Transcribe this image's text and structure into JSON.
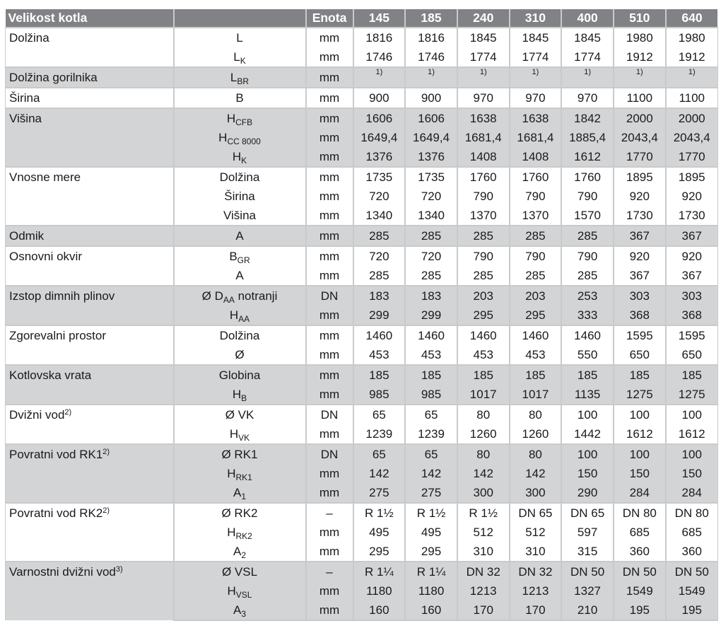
{
  "header": {
    "label": "Velikost kotla",
    "unit": "Enota",
    "sizes": [
      "145",
      "185",
      "240",
      "310",
      "400",
      "510",
      "640"
    ]
  },
  "groups": [
    {
      "label": "Dolžina",
      "rows": [
        {
          "sym": "L",
          "sub": "",
          "unit": "mm",
          "values": [
            "1816",
            "1816",
            "1845",
            "1845",
            "1845",
            "1980",
            "1980"
          ]
        },
        {
          "sym": "L",
          "sub": "K",
          "unit": "mm",
          "values": [
            "1746",
            "1746",
            "1774",
            "1774",
            "1774",
            "1912",
            "1912"
          ]
        }
      ]
    },
    {
      "label": "Dolžina gorilnika",
      "rows": [
        {
          "sym": "L",
          "sub": "BR",
          "unit": "mm",
          "values": [
            "1)",
            "1)",
            "1)",
            "1)",
            "1)",
            "1)",
            "1)"
          ],
          "footnote": true
        }
      ]
    },
    {
      "label": "Širina",
      "rows": [
        {
          "sym": "B",
          "sub": "",
          "unit": "mm",
          "values": [
            "900",
            "900",
            "970",
            "970",
            "970",
            "1100",
            "1100"
          ]
        }
      ]
    },
    {
      "label": "Višina",
      "rows": [
        {
          "sym": "H",
          "sub": "CFB",
          "unit": "mm",
          "values": [
            "1606",
            "1606",
            "1638",
            "1638",
            "1842",
            "2000",
            "2000"
          ]
        },
        {
          "sym": "H",
          "sub": "CC 8000",
          "unit": "mm",
          "values": [
            "1649,4",
            "1649,4",
            "1681,4",
            "1681,4",
            "1885,4",
            "2043,4",
            "2043,4"
          ]
        },
        {
          "sym": "H",
          "sub": "K",
          "unit": "mm",
          "values": [
            "1376",
            "1376",
            "1408",
            "1408",
            "1612",
            "1770",
            "1770"
          ]
        }
      ]
    },
    {
      "label": "Vnosne mere",
      "rows": [
        {
          "sym": "Dolžina",
          "sub": "",
          "unit": "mm",
          "values": [
            "1735",
            "1735",
            "1760",
            "1760",
            "1760",
            "1895",
            "1895"
          ]
        },
        {
          "sym": "Širina",
          "sub": "",
          "unit": "mm",
          "values": [
            "720",
            "720",
            "790",
            "790",
            "790",
            "920",
            "920"
          ]
        },
        {
          "sym": "Višina",
          "sub": "",
          "unit": "mm",
          "values": [
            "1340",
            "1340",
            "1370",
            "1370",
            "1570",
            "1730",
            "1730"
          ]
        }
      ]
    },
    {
      "label": "Odmik",
      "rows": [
        {
          "sym": "A",
          "sub": "",
          "unit": "mm",
          "values": [
            "285",
            "285",
            "285",
            "285",
            "285",
            "367",
            "367"
          ]
        }
      ]
    },
    {
      "label": "Osnovni okvir",
      "rows": [
        {
          "sym": "B",
          "sub": "GR",
          "unit": "mm",
          "values": [
            "720",
            "720",
            "790",
            "790",
            "790",
            "920",
            "920"
          ]
        },
        {
          "sym": "A",
          "sub": "",
          "unit": "mm",
          "values": [
            "285",
            "285",
            "285",
            "285",
            "285",
            "367",
            "367"
          ]
        }
      ]
    },
    {
      "label": "Izstop dimnih plinov",
      "rows": [
        {
          "sym": "Ø D",
          "sub": "AA",
          "suffix": " notranji",
          "unit": "DN",
          "values": [
            "183",
            "183",
            "203",
            "203",
            "253",
            "303",
            "303"
          ]
        },
        {
          "sym": "H",
          "sub": "AA",
          "unit": "mm",
          "values": [
            "299",
            "299",
            "295",
            "295",
            "333",
            "368",
            "368"
          ]
        }
      ]
    },
    {
      "label": "Zgorevalni prostor",
      "rows": [
        {
          "sym": "Dolžina",
          "sub": "",
          "unit": "mm",
          "values": [
            "1460",
            "1460",
            "1460",
            "1460",
            "1460",
            "1595",
            "1595"
          ]
        },
        {
          "sym": "Ø",
          "sub": "",
          "unit": "mm",
          "values": [
            "453",
            "453",
            "453",
            "453",
            "550",
            "650",
            "650"
          ]
        }
      ]
    },
    {
      "label": "Kotlovska vrata",
      "rows": [
        {
          "sym": "Globina",
          "sub": "",
          "unit": "mm",
          "values": [
            "185",
            "185",
            "185",
            "185",
            "185",
            "185",
            "185"
          ]
        },
        {
          "sym": "H",
          "sub": "B",
          "unit": "mm",
          "values": [
            "985",
            "985",
            "1017",
            "1017",
            "1135",
            "1275",
            "1275"
          ]
        }
      ]
    },
    {
      "label": "Dvižni vod",
      "note": "2)",
      "rows": [
        {
          "sym": "Ø VK",
          "sub": "",
          "unit": "DN",
          "values": [
            "65",
            "65",
            "80",
            "80",
            "100",
            "100",
            "100"
          ]
        },
        {
          "sym": "H",
          "sub": "VK",
          "unit": "mm",
          "values": [
            "1239",
            "1239",
            "1260",
            "1260",
            "1442",
            "1612",
            "1612"
          ]
        }
      ]
    },
    {
      "label": "Povratni vod RK1",
      "note": "2)",
      "rows": [
        {
          "sym": "Ø RK1",
          "sub": "",
          "unit": "DN",
          "values": [
            "65",
            "65",
            "80",
            "80",
            "100",
            "100",
            "100"
          ]
        },
        {
          "sym": "H",
          "sub": "RK1",
          "unit": "mm",
          "values": [
            "142",
            "142",
            "142",
            "142",
            "150",
            "150",
            "150"
          ]
        },
        {
          "sym": "A",
          "sub": "1",
          "unit": "mm",
          "values": [
            "275",
            "275",
            "300",
            "300",
            "290",
            "284",
            "284"
          ]
        }
      ]
    },
    {
      "label": "Povratni vod RK2",
      "note": "2)",
      "rows": [
        {
          "sym": "Ø RK2",
          "sub": "",
          "unit": "–",
          "values": [
            "R 1½",
            "R 1½",
            "R 1½",
            "DN 65",
            "DN 65",
            "DN 80",
            "DN 80"
          ]
        },
        {
          "sym": "H",
          "sub": "RK2",
          "unit": "mm",
          "values": [
            "495",
            "495",
            "512",
            "512",
            "597",
            "685",
            "685"
          ]
        },
        {
          "sym": "A",
          "sub": "2",
          "unit": "mm",
          "values": [
            "295",
            "295",
            "310",
            "310",
            "315",
            "360",
            "360"
          ]
        }
      ]
    },
    {
      "label": "Varnostni dvižni vod",
      "note": "3)",
      "rows": [
        {
          "sym": "Ø VSL",
          "sub": "",
          "unit": "–",
          "values": [
            "R 1¼",
            "R 1¼",
            "DN 32",
            "DN 32",
            "DN 50",
            "DN 50",
            "DN 50"
          ]
        },
        {
          "sym": "H",
          "sub": "VSL",
          "unit": "mm",
          "values": [
            "1180",
            "1180",
            "1213",
            "1213",
            "1327",
            "1549",
            "1549"
          ]
        },
        {
          "sym": "A",
          "sub": "3",
          "unit": "mm",
          "values": [
            "160",
            "160",
            "170",
            "170",
            "210",
            "195",
            "195"
          ]
        }
      ]
    }
  ]
}
